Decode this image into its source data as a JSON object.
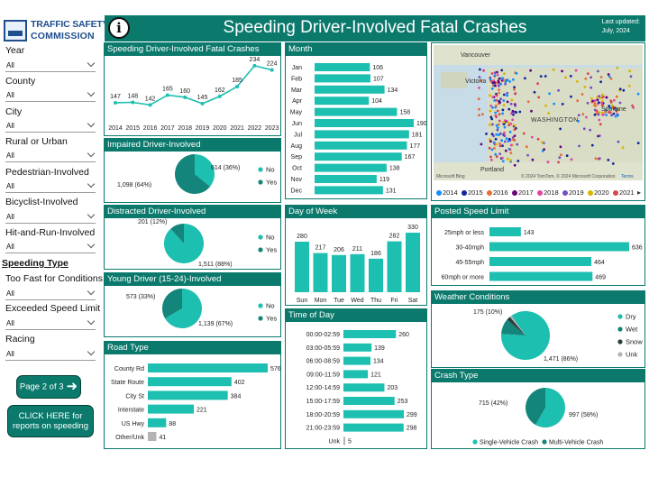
{
  "logo": {
    "line1": "TRAFFIC SAFETY",
    "line2": "COMMISSION"
  },
  "header": {
    "info_icon": "i",
    "title": "Speeding Driver-Involved Fatal Crashes",
    "updated_line1": "Last updated:",
    "updated_line2": "July, 2024"
  },
  "sidebar": {
    "filters": [
      {
        "label": "Year",
        "value": "All"
      },
      {
        "label": "County",
        "value": "All"
      },
      {
        "label": "City",
        "value": "All"
      },
      {
        "label": "Rural or Urban",
        "value": "All"
      },
      {
        "label": "Pedestrian-Involved",
        "value": "All"
      },
      {
        "label": "Bicyclist-Involved",
        "value": "All"
      },
      {
        "label": "Hit-and-Run-Involved",
        "value": "All"
      }
    ],
    "speeding_type_heading": "Speeding Type",
    "speeding_filters": [
      {
        "label": "Too Fast for Conditions",
        "value": "All"
      },
      {
        "label": "Exceeded Speed Limit",
        "value": "All"
      },
      {
        "label": "Racing",
        "value": "All"
      }
    ],
    "page_button": "Page 2 of 3",
    "report_button_line1": "CLICK HERE for",
    "report_button_line2": "reports on speeding"
  },
  "colors": {
    "teal_dark": "#0b7a6d",
    "teal": "#1dbfb0",
    "teal_mid": "#13857a",
    "dark": "#2c3e3c",
    "gray": "#b4b4b4"
  },
  "panels": {
    "fatal": "Speeding Driver-Involved Fatal Crashes",
    "impaired": "Impaired Driver-Involved",
    "distracted": "Distracted Driver-Involved",
    "young": "Young Driver (15-24)-Involved",
    "road": "Road Type",
    "month": "Month",
    "dow": "Day of Week",
    "tod": "Time of Day",
    "posted": "Posted Speed Limit",
    "weather": "Weather Conditions",
    "crash": "Crash Type"
  },
  "map": {
    "labels": {
      "vancouver": "Vancouver",
      "victoria": "Victoria",
      "washington": "WASHINGTON",
      "spokane": "Spokane",
      "portland": "Portland"
    },
    "attribution": "© 2024 TomTom, © 2024 Microsoft Corporation",
    "terms": "Terms",
    "brand": "Microsoft Bing",
    "legend": [
      "2014",
      "2015",
      "2016",
      "2017",
      "2018",
      "2019",
      "2020",
      "2021"
    ],
    "legend_colors": [
      "#118dff",
      "#12239e",
      "#e66c37",
      "#6b007b",
      "#e044a7",
      "#744ec2",
      "#d9b300",
      "#d64550"
    ]
  },
  "chart_data": [
    {
      "id": "fatal_by_year",
      "type": "line",
      "title": "Speeding Driver-Involved Fatal Crashes",
      "x": [
        "2014",
        "2015",
        "2016",
        "2017",
        "2018",
        "2019",
        "2020",
        "2021",
        "2022",
        "2023"
      ],
      "values": [
        147,
        148,
        142,
        165,
        160,
        145,
        162,
        185,
        234,
        224
      ],
      "labels": [
        "147",
        "148",
        "142",
        "165",
        "160",
        "145",
        "162",
        "185",
        "234",
        "224"
      ]
    },
    {
      "id": "impaired",
      "type": "pie",
      "title": "Impaired Driver-Involved",
      "slices": [
        {
          "name": "No",
          "value": 614,
          "label": "614 (36%)"
        },
        {
          "name": "Yes",
          "value": 1098,
          "label": "1,098 (64%)"
        }
      ]
    },
    {
      "id": "distracted",
      "type": "pie",
      "title": "Distracted Driver-Involved",
      "slices": [
        {
          "name": "No",
          "value": 1511,
          "label": "1,511 (88%)"
        },
        {
          "name": "Yes",
          "value": 201,
          "label": "201 (12%)"
        }
      ]
    },
    {
      "id": "young",
      "type": "pie",
      "title": "Young Driver (15-24)-Involved",
      "slices": [
        {
          "name": "No",
          "value": 1139,
          "label": "1,139 (67%)"
        },
        {
          "name": "Yes",
          "value": 573,
          "label": "573 (33%)"
        }
      ]
    },
    {
      "id": "road_type",
      "type": "bar",
      "orientation": "horizontal",
      "title": "Road Type",
      "categories": [
        "County Rd",
        "State Route",
        "City St",
        "Interstate",
        "US Hwy",
        "Other/Unk"
      ],
      "values": [
        576,
        402,
        384,
        221,
        88,
        41
      ],
      "labels": [
        "576",
        "402",
        "384",
        "221",
        "88",
        "41"
      ]
    },
    {
      "id": "month",
      "type": "bar",
      "orientation": "horizontal",
      "title": "Month",
      "categories": [
        "Jan",
        "Feb",
        "Mar",
        "Apr",
        "May",
        "Jun",
        "Jul",
        "Aug",
        "Sep",
        "Oct",
        "Nov",
        "Dec"
      ],
      "values": [
        106,
        107,
        134,
        104,
        158,
        190,
        181,
        177,
        167,
        138,
        119,
        131
      ],
      "labels": [
        "106",
        "107",
        "134",
        "104",
        "158",
        "190",
        "181",
        "177",
        "167",
        "138",
        "119",
        "131"
      ]
    },
    {
      "id": "day_of_week",
      "type": "bar",
      "orientation": "vertical",
      "title": "Day of Week",
      "categories": [
        "Sun",
        "Mon",
        "Tue",
        "Wed",
        "Thu",
        "Fri",
        "Sat"
      ],
      "values": [
        280,
        217,
        206,
        211,
        186,
        282,
        330
      ],
      "labels": [
        "280",
        "217",
        "206",
        "211",
        "186",
        "282",
        "330"
      ]
    },
    {
      "id": "time_of_day",
      "type": "bar",
      "orientation": "horizontal",
      "title": "Time of Day",
      "categories": [
        "00:00-02:59",
        "03:00-05:59",
        "06:00-08:59",
        "09:00-11:59",
        "12:00-14:59",
        "15:00-17:59",
        "18:00-20:59",
        "21:00-23:59",
        "Unk"
      ],
      "values": [
        260,
        139,
        134,
        121,
        203,
        253,
        299,
        298,
        5
      ],
      "labels": [
        "260",
        "139",
        "134",
        "121",
        "203",
        "253",
        "299",
        "298",
        "5"
      ]
    },
    {
      "id": "posted_speed",
      "type": "bar",
      "orientation": "horizontal",
      "title": "Posted Speed Limit",
      "categories": [
        "25mph or less",
        "30-40mph",
        "45-55mph",
        "60mph or more"
      ],
      "values": [
        143,
        636,
        464,
        469
      ],
      "labels": [
        "143",
        "636",
        "464",
        "469"
      ]
    },
    {
      "id": "weather",
      "type": "pie",
      "title": "Weather Conditions",
      "slices": [
        {
          "name": "Dry",
          "value": 1471,
          "label": "1,471 (86%)"
        },
        {
          "name": "Wet",
          "value": 175,
          "label": "175 (10%)"
        },
        {
          "name": "Snow",
          "value": 45,
          "label": ""
        },
        {
          "name": "Unk",
          "value": 21,
          "label": ""
        }
      ]
    },
    {
      "id": "crash_type",
      "type": "pie",
      "title": "Crash Type",
      "slices": [
        {
          "name": "Single-Vehicle Crash",
          "value": 997,
          "label": "997 (58%)"
        },
        {
          "name": "Multi-Vehicle Crash",
          "value": 715,
          "label": "715 (42%)"
        }
      ]
    }
  ]
}
